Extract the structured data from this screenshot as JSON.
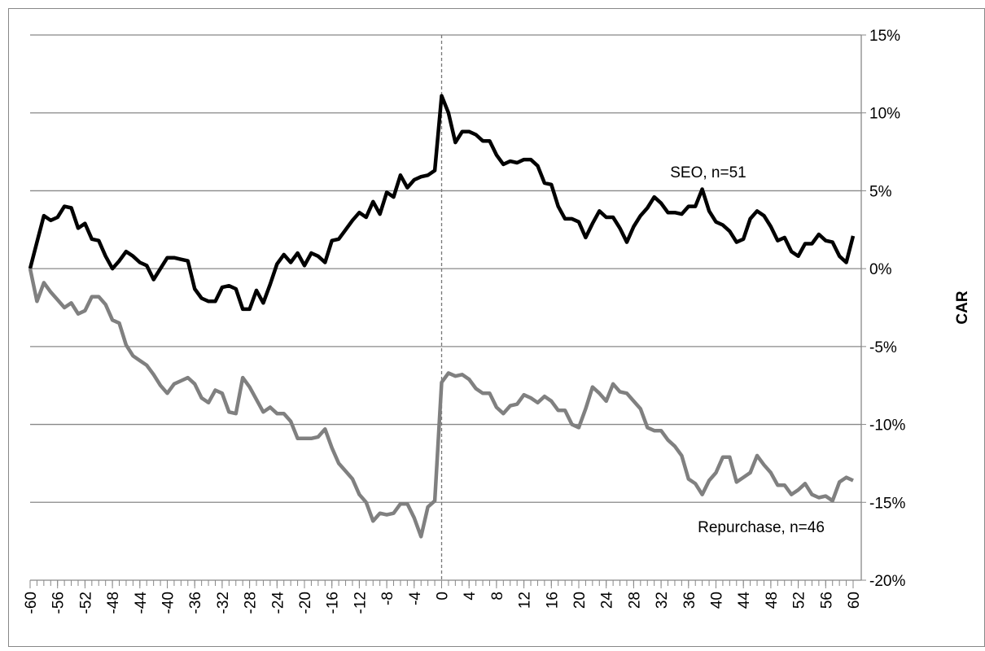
{
  "chart_data": {
    "type": "line",
    "x": [
      -60,
      -59,
      -58,
      -57,
      -56,
      -55,
      -54,
      -53,
      -52,
      -51,
      -50,
      -49,
      -48,
      -47,
      -46,
      -45,
      -44,
      -43,
      -42,
      -41,
      -40,
      -39,
      -38,
      -37,
      -36,
      -35,
      -34,
      -33,
      -32,
      -31,
      -30,
      -29,
      -28,
      -27,
      -26,
      -25,
      -24,
      -23,
      -22,
      -21,
      -20,
      -19,
      -18,
      -17,
      -16,
      -15,
      -14,
      -13,
      -12,
      -11,
      -10,
      -9,
      -8,
      -7,
      -6,
      -5,
      -4,
      -3,
      -2,
      -1,
      0,
      1,
      2,
      3,
      4,
      5,
      6,
      7,
      8,
      9,
      10,
      11,
      12,
      13,
      14,
      15,
      16,
      17,
      18,
      19,
      20,
      21,
      22,
      23,
      24,
      25,
      26,
      27,
      28,
      29,
      30,
      31,
      32,
      33,
      34,
      35,
      36,
      37,
      38,
      39,
      40,
      41,
      42,
      43,
      44,
      45,
      46,
      47,
      48,
      49,
      50,
      51,
      52,
      53,
      54,
      55,
      56,
      57,
      58,
      59,
      60
    ],
    "series": [
      {
        "name": "SEO, n=51",
        "color": "#000000",
        "values": [
          0,
          1.7,
          3.4,
          3.1,
          3.3,
          4.0,
          3.9,
          2.6,
          2.9,
          1.9,
          1.8,
          0.8,
          0.0,
          0.5,
          1.1,
          0.8,
          0.4,
          0.2,
          -0.7,
          0.0,
          0.7,
          0.7,
          0.6,
          0.5,
          -1.3,
          -1.9,
          -2.1,
          -2.1,
          -1.2,
          -1.1,
          -1.3,
          -2.6,
          -2.6,
          -1.4,
          -2.2,
          -1.0,
          0.3,
          0.9,
          0.4,
          1.0,
          0.2,
          1.0,
          0.8,
          0.4,
          1.8,
          1.9,
          2.5,
          3.1,
          3.6,
          3.3,
          4.3,
          3.5,
          4.9,
          4.6,
          6.0,
          5.2,
          5.7,
          5.9,
          6.0,
          6.3,
          11.1,
          10.0,
          8.1,
          8.8,
          8.8,
          8.6,
          8.2,
          8.2,
          7.3,
          6.7,
          6.9,
          6.8,
          7.0,
          7.0,
          6.6,
          5.5,
          5.4,
          4.0,
          3.2,
          3.2,
          3.0,
          2.0,
          2.9,
          3.7,
          3.3,
          3.3,
          2.6,
          1.7,
          2.7,
          3.4,
          3.9,
          4.6,
          4.2,
          3.6,
          3.6,
          3.5,
          4.0,
          4.0,
          5.1,
          3.7,
          3.0,
          2.8,
          2.4,
          1.7,
          1.9,
          3.2,
          3.7,
          3.4,
          2.7,
          1.8,
          2.0,
          1.1,
          0.8,
          1.6,
          1.6,
          2.2,
          1.8,
          1.7,
          0.8,
          0.4,
          2.1
        ]
      },
      {
        "name": "Repurchase, n=46",
        "color": "#808080",
        "values": [
          0,
          -2.1,
          -0.9,
          -1.5,
          -2.0,
          -2.5,
          -2.2,
          -2.9,
          -2.7,
          -1.8,
          -1.8,
          -2.3,
          -3.3,
          -3.5,
          -4.9,
          -5.6,
          -5.9,
          -6.2,
          -6.8,
          -7.5,
          -8.0,
          -7.4,
          -7.2,
          -7.0,
          -7.4,
          -8.3,
          -8.6,
          -7.8,
          -8.0,
          -9.2,
          -9.3,
          -7.0,
          -7.6,
          -8.4,
          -9.2,
          -8.9,
          -9.3,
          -9.3,
          -9.8,
          -10.9,
          -10.9,
          -10.9,
          -10.8,
          -10.3,
          -11.5,
          -12.5,
          -13.0,
          -13.5,
          -14.5,
          -15.0,
          -16.2,
          -15.7,
          -15.8,
          -15.7,
          -15.1,
          -15.1,
          -16.0,
          -17.2,
          -15.3,
          -14.9,
          -7.3,
          -6.7,
          -6.9,
          -6.8,
          -7.1,
          -7.7,
          -8.0,
          -8.0,
          -8.9,
          -9.3,
          -8.8,
          -8.7,
          -8.1,
          -8.3,
          -8.6,
          -8.2,
          -8.5,
          -9.1,
          -9.1,
          -10.0,
          -10.2,
          -9.0,
          -7.6,
          -8.0,
          -8.5,
          -7.4,
          -7.9,
          -8.0,
          -8.5,
          -9.0,
          -10.2,
          -10.4,
          -10.4,
          -11.0,
          -11.4,
          -12.0,
          -13.5,
          -13.8,
          -14.5,
          -13.6,
          -13.1,
          -12.1,
          -12.1,
          -13.7,
          -13.4,
          -13.1,
          -12.0,
          -12.6,
          -13.1,
          -13.9,
          -13.9,
          -14.5,
          -14.2,
          -13.8,
          -14.5,
          -14.7,
          -14.6,
          -14.9,
          -13.7,
          -13.4,
          -13.6
        ]
      }
    ],
    "xlim": [
      -60,
      60
    ],
    "xticks": [
      -60,
      -56,
      -52,
      -48,
      -44,
      -40,
      -36,
      -32,
      -28,
      -24,
      -20,
      -16,
      -12,
      -8,
      -4,
      0,
      4,
      8,
      12,
      16,
      20,
      24,
      28,
      32,
      36,
      40,
      44,
      48,
      52,
      56,
      60
    ],
    "ylim": [
      -20,
      15
    ],
    "yticks": [
      {
        "value": -20,
        "label": "-20%"
      },
      {
        "value": -15,
        "label": "-15%"
      },
      {
        "value": -10,
        "label": "-10%"
      },
      {
        "value": -5,
        "label": "-5%"
      },
      {
        "value": 0,
        "label": "0%"
      },
      {
        "value": 5,
        "label": "5%"
      },
      {
        "value": 10,
        "label": "10%"
      },
      {
        "value": 15,
        "label": "15%"
      }
    ],
    "y_label": "CAR",
    "y_axis_side": "right",
    "vline": 0,
    "grid": true
  }
}
